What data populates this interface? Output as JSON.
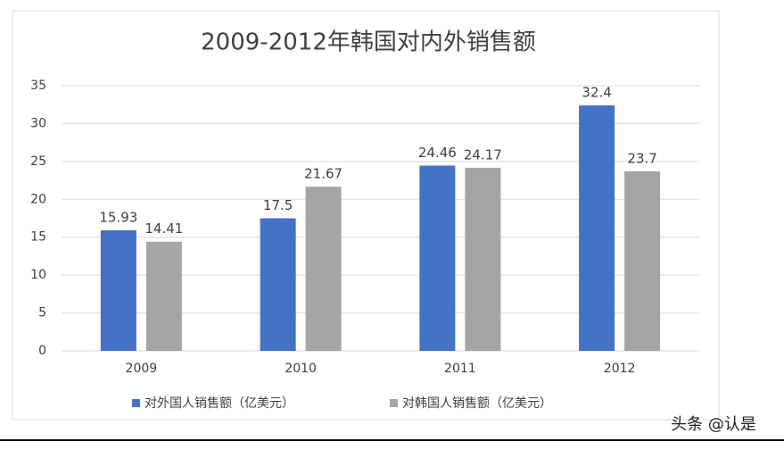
{
  "chart_data": {
    "type": "bar",
    "title": "2009-2012年韩国对内外销售额",
    "categories": [
      "2009",
      "2010",
      "2011",
      "2012"
    ],
    "series": [
      {
        "name": "对外国人销售额（亿美元）",
        "color": "#4472c4",
        "values": [
          15.93,
          17.5,
          24.46,
          32.4
        ]
      },
      {
        "name": "对韩国人销售额（亿美元）",
        "color": "#a5a5a5",
        "values": [
          14.41,
          21.67,
          24.17,
          23.7
        ]
      }
    ],
    "ylim": [
      0,
      35
    ],
    "yticks": [
      0,
      5,
      10,
      15,
      20,
      25,
      30,
      35
    ],
    "grid": true,
    "legend": "bottom"
  },
  "watermark": "头条 @认是"
}
